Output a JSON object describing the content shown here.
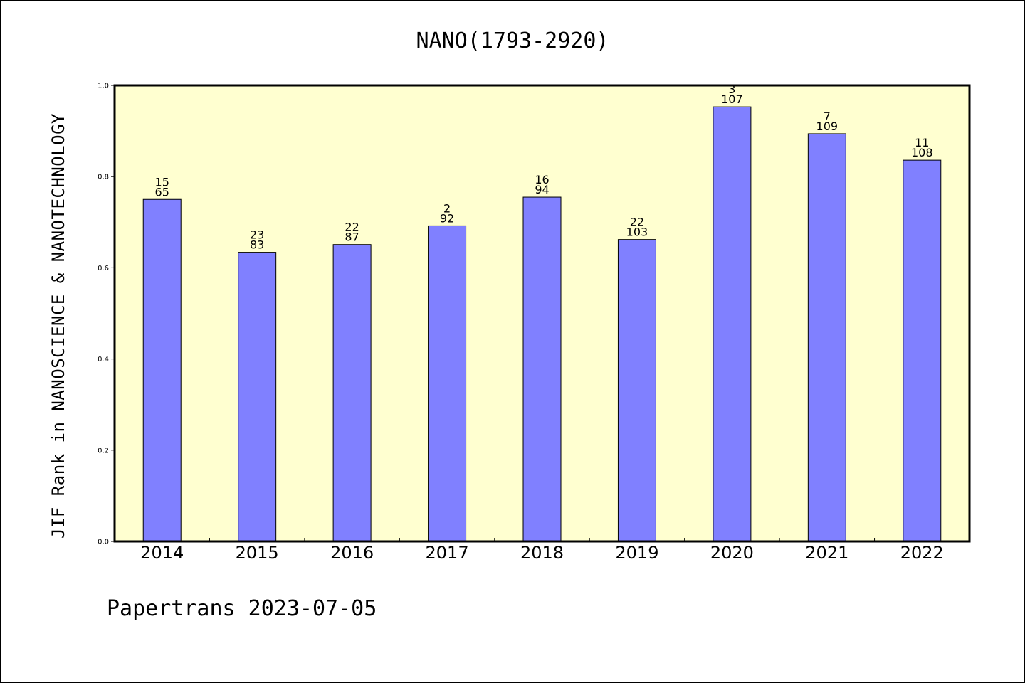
{
  "footer": "Papertrans 2023-07-05",
  "colors": {
    "plot_background": "#ffffd0",
    "bar_fill": "#8080ff",
    "bar_stroke": "#000000"
  },
  "chart_data": {
    "type": "bar",
    "title": "NANO(1793-2920)",
    "xlabel": "",
    "ylabel": "JIF Rank in NANOSCIENCE & NANOTECHNOLOGY",
    "ylim": [
      0,
      1.0
    ],
    "yticks": [
      "0.0",
      "0.2",
      "0.4",
      "0.6",
      "0.8",
      "1.0"
    ],
    "categories": [
      "2014",
      "2015",
      "2016",
      "2017",
      "2018",
      "2019",
      "2020",
      "2021",
      "2022"
    ],
    "values": [
      0.75,
      0.634,
      0.651,
      0.692,
      0.755,
      0.662,
      0.953,
      0.894,
      0.836
    ],
    "labels_rank": [
      "15",
      "23",
      "22",
      "2",
      "16",
      "22",
      "3",
      "7",
      "11"
    ],
    "labels_total": [
      "65",
      "83",
      "87",
      "92",
      "94",
      "103",
      "107",
      "109",
      "108"
    ],
    "grid": false,
    "legend": "none"
  }
}
